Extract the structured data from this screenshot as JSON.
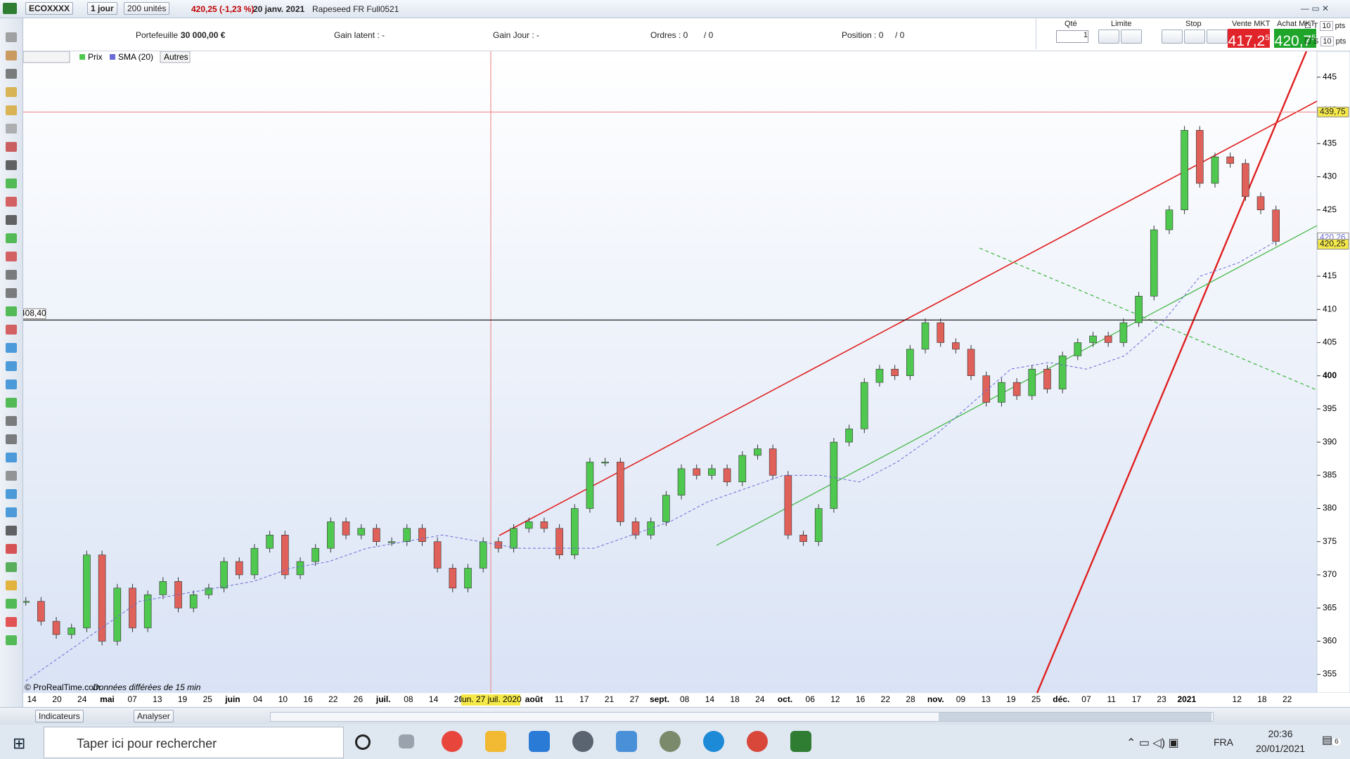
{
  "toolbar": {
    "instrument": "ECOXXXX",
    "period": "1 jour",
    "units": "200 unités",
    "price_change": "420,25 (-1,23 %)",
    "date": "20 janv. 2021",
    "name": "Rapeseed FR Full0521"
  },
  "account": {
    "portfolio": "Portefeuille :",
    "portfolio_value": "30 000,00 €",
    "latent": "Gain latent : -",
    "day": "Gain Jour : -",
    "orders": "Ordres : 0",
    "orders_total": "/ 0",
    "position": "Position : 0",
    "position_total": "/ 0"
  },
  "order_panel": {
    "qty_label": "Qté",
    "qty": "1",
    "limit": "Limite",
    "stop": "Stop",
    "sell": "Vente MKT",
    "buy": "Achat MKT",
    "sell_price": "417,2",
    "sell_sup": "5",
    "buy_price": "420,7",
    "buy_sup": "5",
    "t": "T",
    "s": "S",
    "t_pts": "10",
    "s_pts": "10",
    "pts": "pts"
  },
  "chart_data": {
    "type": "candlestick",
    "series": [
      {
        "name": "Prix",
        "up_color": "#4fc84f",
        "down_color": "#e0605a",
        "values": [
          366,
          363,
          361,
          362,
          373,
          360,
          368,
          362,
          367,
          369,
          365,
          367,
          368,
          372,
          370,
          374,
          376,
          370,
          372,
          374,
          378,
          376,
          377,
          375,
          375,
          377,
          375,
          371,
          368,
          371,
          375,
          374,
          377,
          378,
          377,
          373,
          380,
          387,
          387,
          378,
          376,
          378,
          382,
          386,
          385,
          386,
          384,
          388,
          389,
          385,
          376,
          375,
          380,
          390,
          392,
          399,
          401,
          400,
          404,
          408,
          405,
          404,
          400,
          396,
          399,
          397,
          401,
          398,
          403,
          405,
          406,
          405,
          408,
          412,
          422,
          425,
          437,
          429,
          433,
          432,
          427,
          425,
          420.25
        ]
      },
      {
        "name": "SMA (20)",
        "color": "#6b6bd6",
        "values": [
          354,
          358,
          362,
          366,
          367,
          368,
          369,
          371,
          372,
          374,
          375,
          376,
          375,
          374,
          374,
          374,
          376,
          378,
          381,
          383,
          385,
          385,
          384,
          387,
          391,
          396,
          401,
          402,
          401,
          403,
          408,
          415,
          417,
          420.26
        ]
      }
    ],
    "other_button": "Autres",
    "ylim": [
      352.2,
      448.9
    ],
    "yticks": [
      355,
      360,
      365,
      370,
      375,
      380,
      385,
      390,
      395,
      400,
      405,
      410,
      415,
      420,
      425,
      430,
      435,
      440,
      445
    ],
    "x_labels": [
      "14",
      "20",
      "24",
      "mai",
      "07",
      "13",
      "19",
      "25",
      "juin",
      "04",
      "10",
      "16",
      "22",
      "26",
      "juil.",
      "08",
      "14",
      "20",
      null,
      null,
      "août",
      "11",
      "17",
      "21",
      "27",
      "sept.",
      "08",
      "14",
      "18",
      "24",
      "oct.",
      "06",
      "12",
      "16",
      "22",
      "28",
      "nov.",
      "09",
      "13",
      "19",
      "25",
      "déc.",
      "07",
      "11",
      "17",
      "23",
      "2021",
      null,
      "12",
      "18",
      "22"
    ],
    "price_tags": {
      "cursor": {
        "value": 439.75,
        "label": "439,75"
      },
      "sma_last": {
        "value": 420.26,
        "label": "420,26"
      },
      "last": {
        "value": 420.25,
        "label": "420,25"
      },
      "level": {
        "value": 408.4,
        "label": "408,40"
      }
    },
    "crosshair_label": "lun. 27 juil. 2020",
    "copyright": "© ProRealTime.com",
    "delay": "Données différées de 15 min"
  },
  "bottom_bar": {
    "indicators": "Indicateurs",
    "analyze": "Analyser"
  },
  "taskbar": {
    "search": "Taper ici pour rechercher",
    "lang": "FRA",
    "time": "20:36",
    "date": "20/01/2021",
    "notifications": "6"
  }
}
